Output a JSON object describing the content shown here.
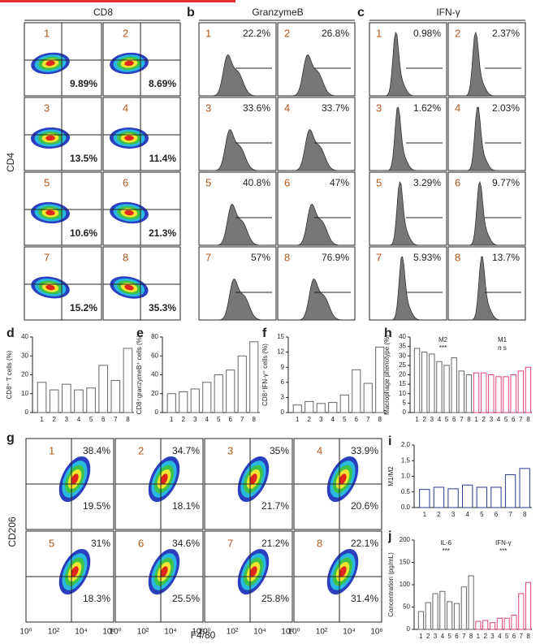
{
  "panels": {
    "a": {
      "title": "CD8",
      "ylabel": "CD4",
      "numbers": [
        "1",
        "2",
        "3",
        "4",
        "5",
        "6",
        "7",
        "8"
      ],
      "values": [
        "9.89%",
        "8.69%",
        "13.5%",
        "11.4%",
        "10.6%",
        "21.3%",
        "15.2%",
        "35.3%"
      ]
    },
    "b": {
      "letter": "b",
      "title": "GranzymeB",
      "numbers": [
        "1",
        "2",
        "3",
        "4",
        "5",
        "6",
        "7",
        "8"
      ],
      "values": [
        "22.2%",
        "26.8%",
        "33.6%",
        "33.7%",
        "40.8%",
        "47%",
        "57%",
        "76.9%"
      ]
    },
    "c": {
      "letter": "c",
      "title": "IFN-γ",
      "numbers": [
        "1",
        "2",
        "3",
        "4",
        "5",
        "6",
        "7",
        "8"
      ],
      "values": [
        "0.98%",
        "2.37%",
        "1.62%",
        "2.03%",
        "3.29%",
        "9.77%",
        "5.93%",
        "13.7%"
      ]
    },
    "g": {
      "letter": "g",
      "ylabel": "CD206",
      "xlabel": "F4/80",
      "xticks": [
        "10⁰",
        "10²",
        "10⁴",
        "10⁶"
      ],
      "numbers": [
        "1",
        "2",
        "3",
        "4",
        "5",
        "6",
        "7",
        "8"
      ],
      "upper": [
        "38.4%",
        "34.7%",
        "35%",
        "33.9%",
        "31%",
        "34.6%",
        "21.2%",
        "22.1%"
      ],
      "lower": [
        "19.5%",
        "18.1%",
        "21.7%",
        "20.6%",
        "18.3%",
        "25.5%",
        "25.8%",
        "31.4%"
      ]
    }
  },
  "chart_data": [
    {
      "type": "bar",
      "panel": "d",
      "ylabel": "CD8⁺ T cells (%)",
      "categories": [
        "1",
        "2",
        "3",
        "4",
        "5",
        "6",
        "7",
        "8"
      ],
      "values": [
        16,
        12,
        15,
        12,
        13,
        25,
        17,
        34
      ],
      "color": "#666666",
      "ylim": [
        0,
        40
      ],
      "yticks": [
        0,
        10,
        20,
        30,
        40
      ]
    },
    {
      "type": "bar",
      "panel": "e",
      "ylabel": "CD8⁺granzymeB⁺ cells (%)",
      "categories": [
        "1",
        "2",
        "3",
        "4",
        "5",
        "6",
        "7",
        "8"
      ],
      "values": [
        20,
        22,
        25,
        32,
        40,
        45,
        60,
        75
      ],
      "color": "#666666",
      "ylim": [
        0,
        80
      ],
      "yticks": [
        0,
        20,
        40,
        60,
        80
      ]
    },
    {
      "type": "bar",
      "panel": "f",
      "ylabel": "CD8⁺IFN-γ⁺ cells (%)",
      "categories": [
        "1",
        "2",
        "3",
        "4",
        "5",
        "6",
        "7",
        "8"
      ],
      "values": [
        1.5,
        2.2,
        1.8,
        2.0,
        3.5,
        8.5,
        5.8,
        13
      ],
      "color": "#666666",
      "ylim": [
        0,
        15
      ],
      "yticks": [
        0,
        3,
        6,
        9,
        12,
        15
      ]
    },
    {
      "type": "bar",
      "panel": "h",
      "ylabel": "Macrophage phenotype (%)",
      "categories": [
        "1",
        "2",
        "3",
        "4",
        "5",
        "6",
        "7",
        "8"
      ],
      "series": [
        {
          "name": "M2",
          "color": "#666666",
          "values": [
            34,
            32,
            31,
            27,
            25,
            29,
            22,
            20
          ]
        },
        {
          "name": "M1",
          "color": "#e0457b",
          "values": [
            21,
            21,
            20,
            19,
            19,
            20,
            22,
            24
          ]
        }
      ],
      "annotations": [
        "***",
        "n s"
      ],
      "ylim": [
        0,
        40
      ],
      "yticks": [
        0,
        5,
        10,
        15,
        20,
        25,
        30,
        35,
        40
      ]
    },
    {
      "type": "bar",
      "panel": "i",
      "ylabel": "M1/M2",
      "categories": [
        "1",
        "2",
        "3",
        "4",
        "5",
        "6",
        "7",
        "8"
      ],
      "values": [
        0.58,
        0.65,
        0.6,
        0.72,
        0.65,
        0.65,
        1.05,
        1.25
      ],
      "color": "#2b3a8c",
      "ylim": [
        0,
        2
      ],
      "yticks": [
        {
          "value": 0,
          "label": "0.0"
        },
        0.5,
        {
          "value": 1,
          "label": "1.0"
        },
        1.5,
        {
          "value": 2,
          "label": "2.0"
        }
      ]
    },
    {
      "type": "bar",
      "panel": "j",
      "ylabel": "Concentration (pg/mL)",
      "categories": [
        "1",
        "2",
        "3",
        "4",
        "5",
        "6",
        "7",
        "8"
      ],
      "series": [
        {
          "name": "IL-6",
          "color": "#666666",
          "values": [
            40,
            60,
            80,
            85,
            62,
            58,
            95,
            120
          ]
        },
        {
          "name": "IFN-γ",
          "color": "#e0457b",
          "values": [
            18,
            20,
            15,
            25,
            25,
            32,
            80,
            105
          ]
        }
      ],
      "annotations": [
        "***",
        "***"
      ],
      "ylim": [
        0,
        200
      ],
      "yticks": [
        0,
        50,
        100,
        150,
        200
      ]
    }
  ]
}
